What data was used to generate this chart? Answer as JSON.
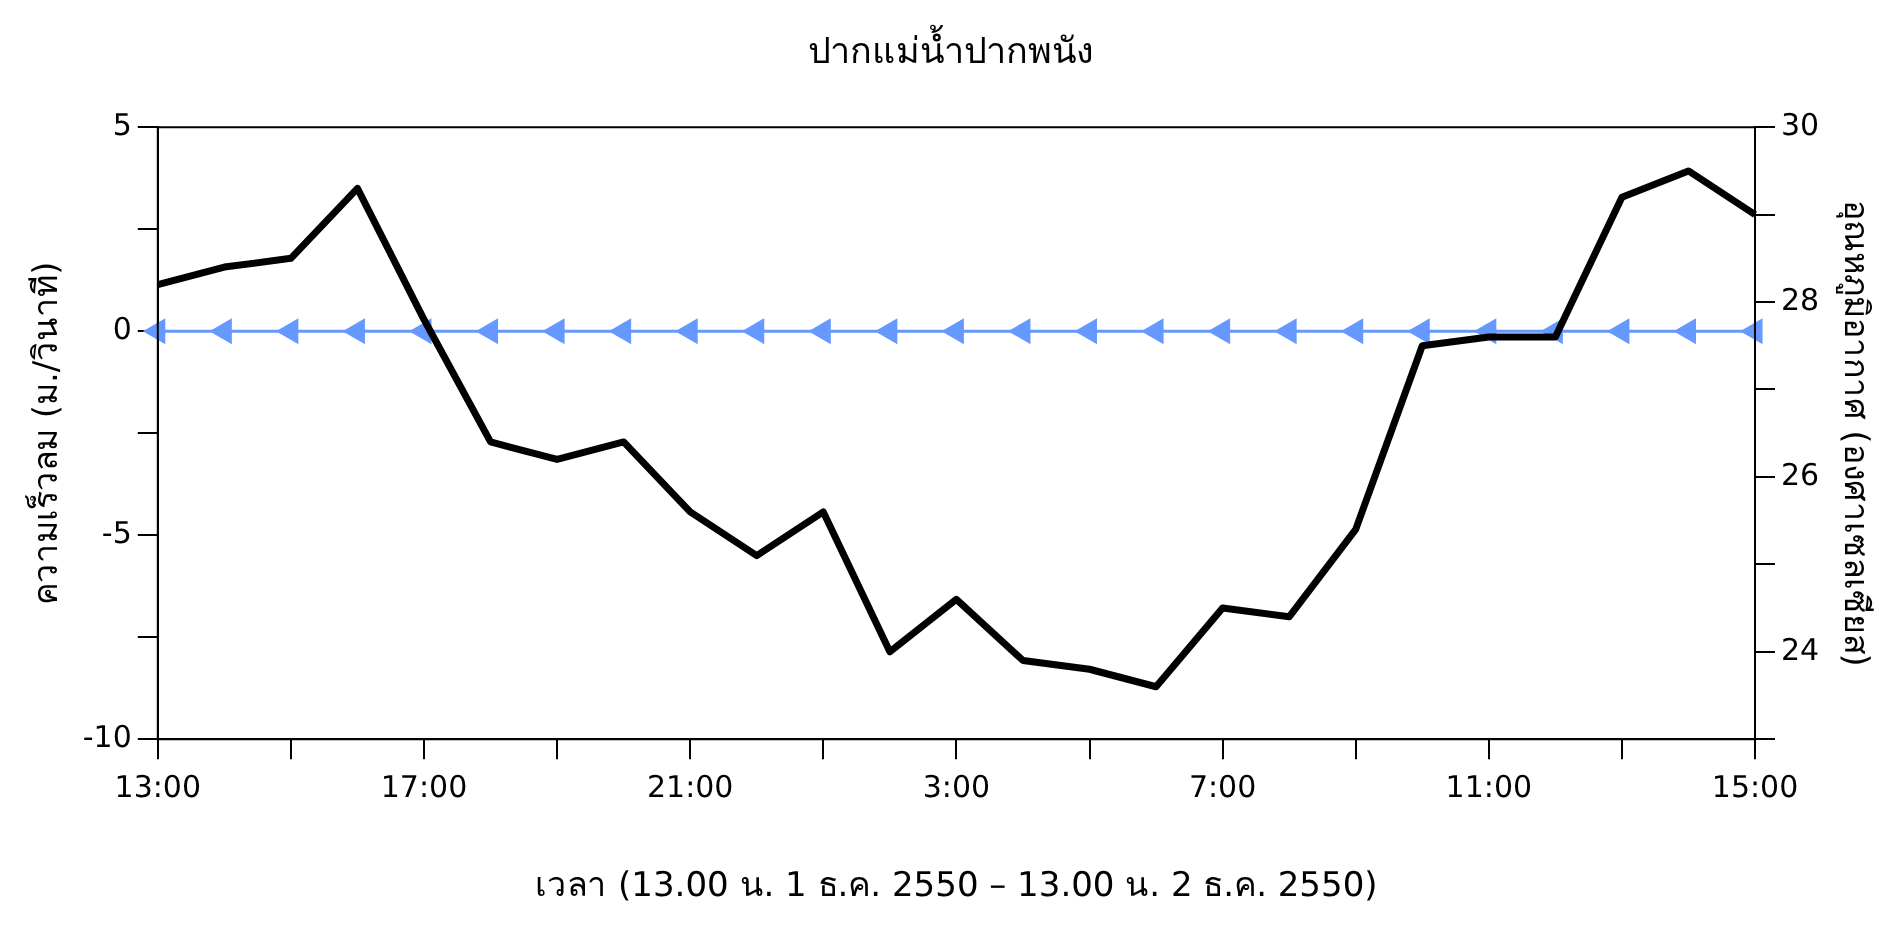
{
  "chart_data": {
    "type": "line",
    "title": "ปากแม่น้ำปากพนัง",
    "xlabel": "เวลา (13.00 น. 1 ธ.ค. 2550 – 13.00 น. 2 ธ.ค. 2550)",
    "ylabel": "ความเร็วลม (ม./วินาที)",
    "y2label": "อุณหภูมิอากาศ (องศาเซลเซียส)",
    "categories": [
      "13:00",
      null,
      null,
      null,
      "17:00",
      null,
      null,
      null,
      "21:00",
      null,
      null,
      null,
      "3:00",
      null,
      null,
      null,
      "7:00",
      null,
      null,
      null,
      "11:00",
      null,
      null,
      null,
      "15:00"
    ],
    "series": [
      {
        "color": "#000000",
        "axis": "y2",
        "marker": "none",
        "values": [
          28.2,
          28.4,
          28.5,
          29.3,
          27.8,
          26.4,
          26.2,
          26.4,
          25.6,
          25.1,
          25.6,
          24.0,
          24.6,
          23.9,
          23.8,
          23.6,
          24.5,
          24.4,
          25.4,
          27.5,
          27.6,
          27.6,
          29.2,
          29.5,
          29.0
        ]
      },
      {
        "color": "#6699ff",
        "marker": "triangle",
        "values": [
          0,
          0,
          0,
          0,
          0,
          0,
          0,
          0,
          0,
          0,
          0,
          0,
          0,
          0,
          0,
          0,
          0,
          0,
          0,
          0,
          0,
          0,
          0,
          0,
          0
        ]
      }
    ],
    "ylim": [
      -10,
      5
    ],
    "yticks": [
      -10,
      {
        "value": -7.5,
        "label": null
      },
      -5,
      {
        "value": -2.5,
        "label": null
      },
      0,
      {
        "value": 2.5,
        "label": null
      },
      5
    ],
    "y2lim": [
      23,
      30
    ],
    "y2ticks": [
      {
        "value": 23,
        "label": null
      },
      24,
      {
        "value": 25,
        "label": null
      },
      26,
      {
        "value": 27,
        "label": null
      },
      28,
      {
        "value": 29,
        "label": null
      },
      30
    ],
    "grid": false,
    "legend": false
  }
}
